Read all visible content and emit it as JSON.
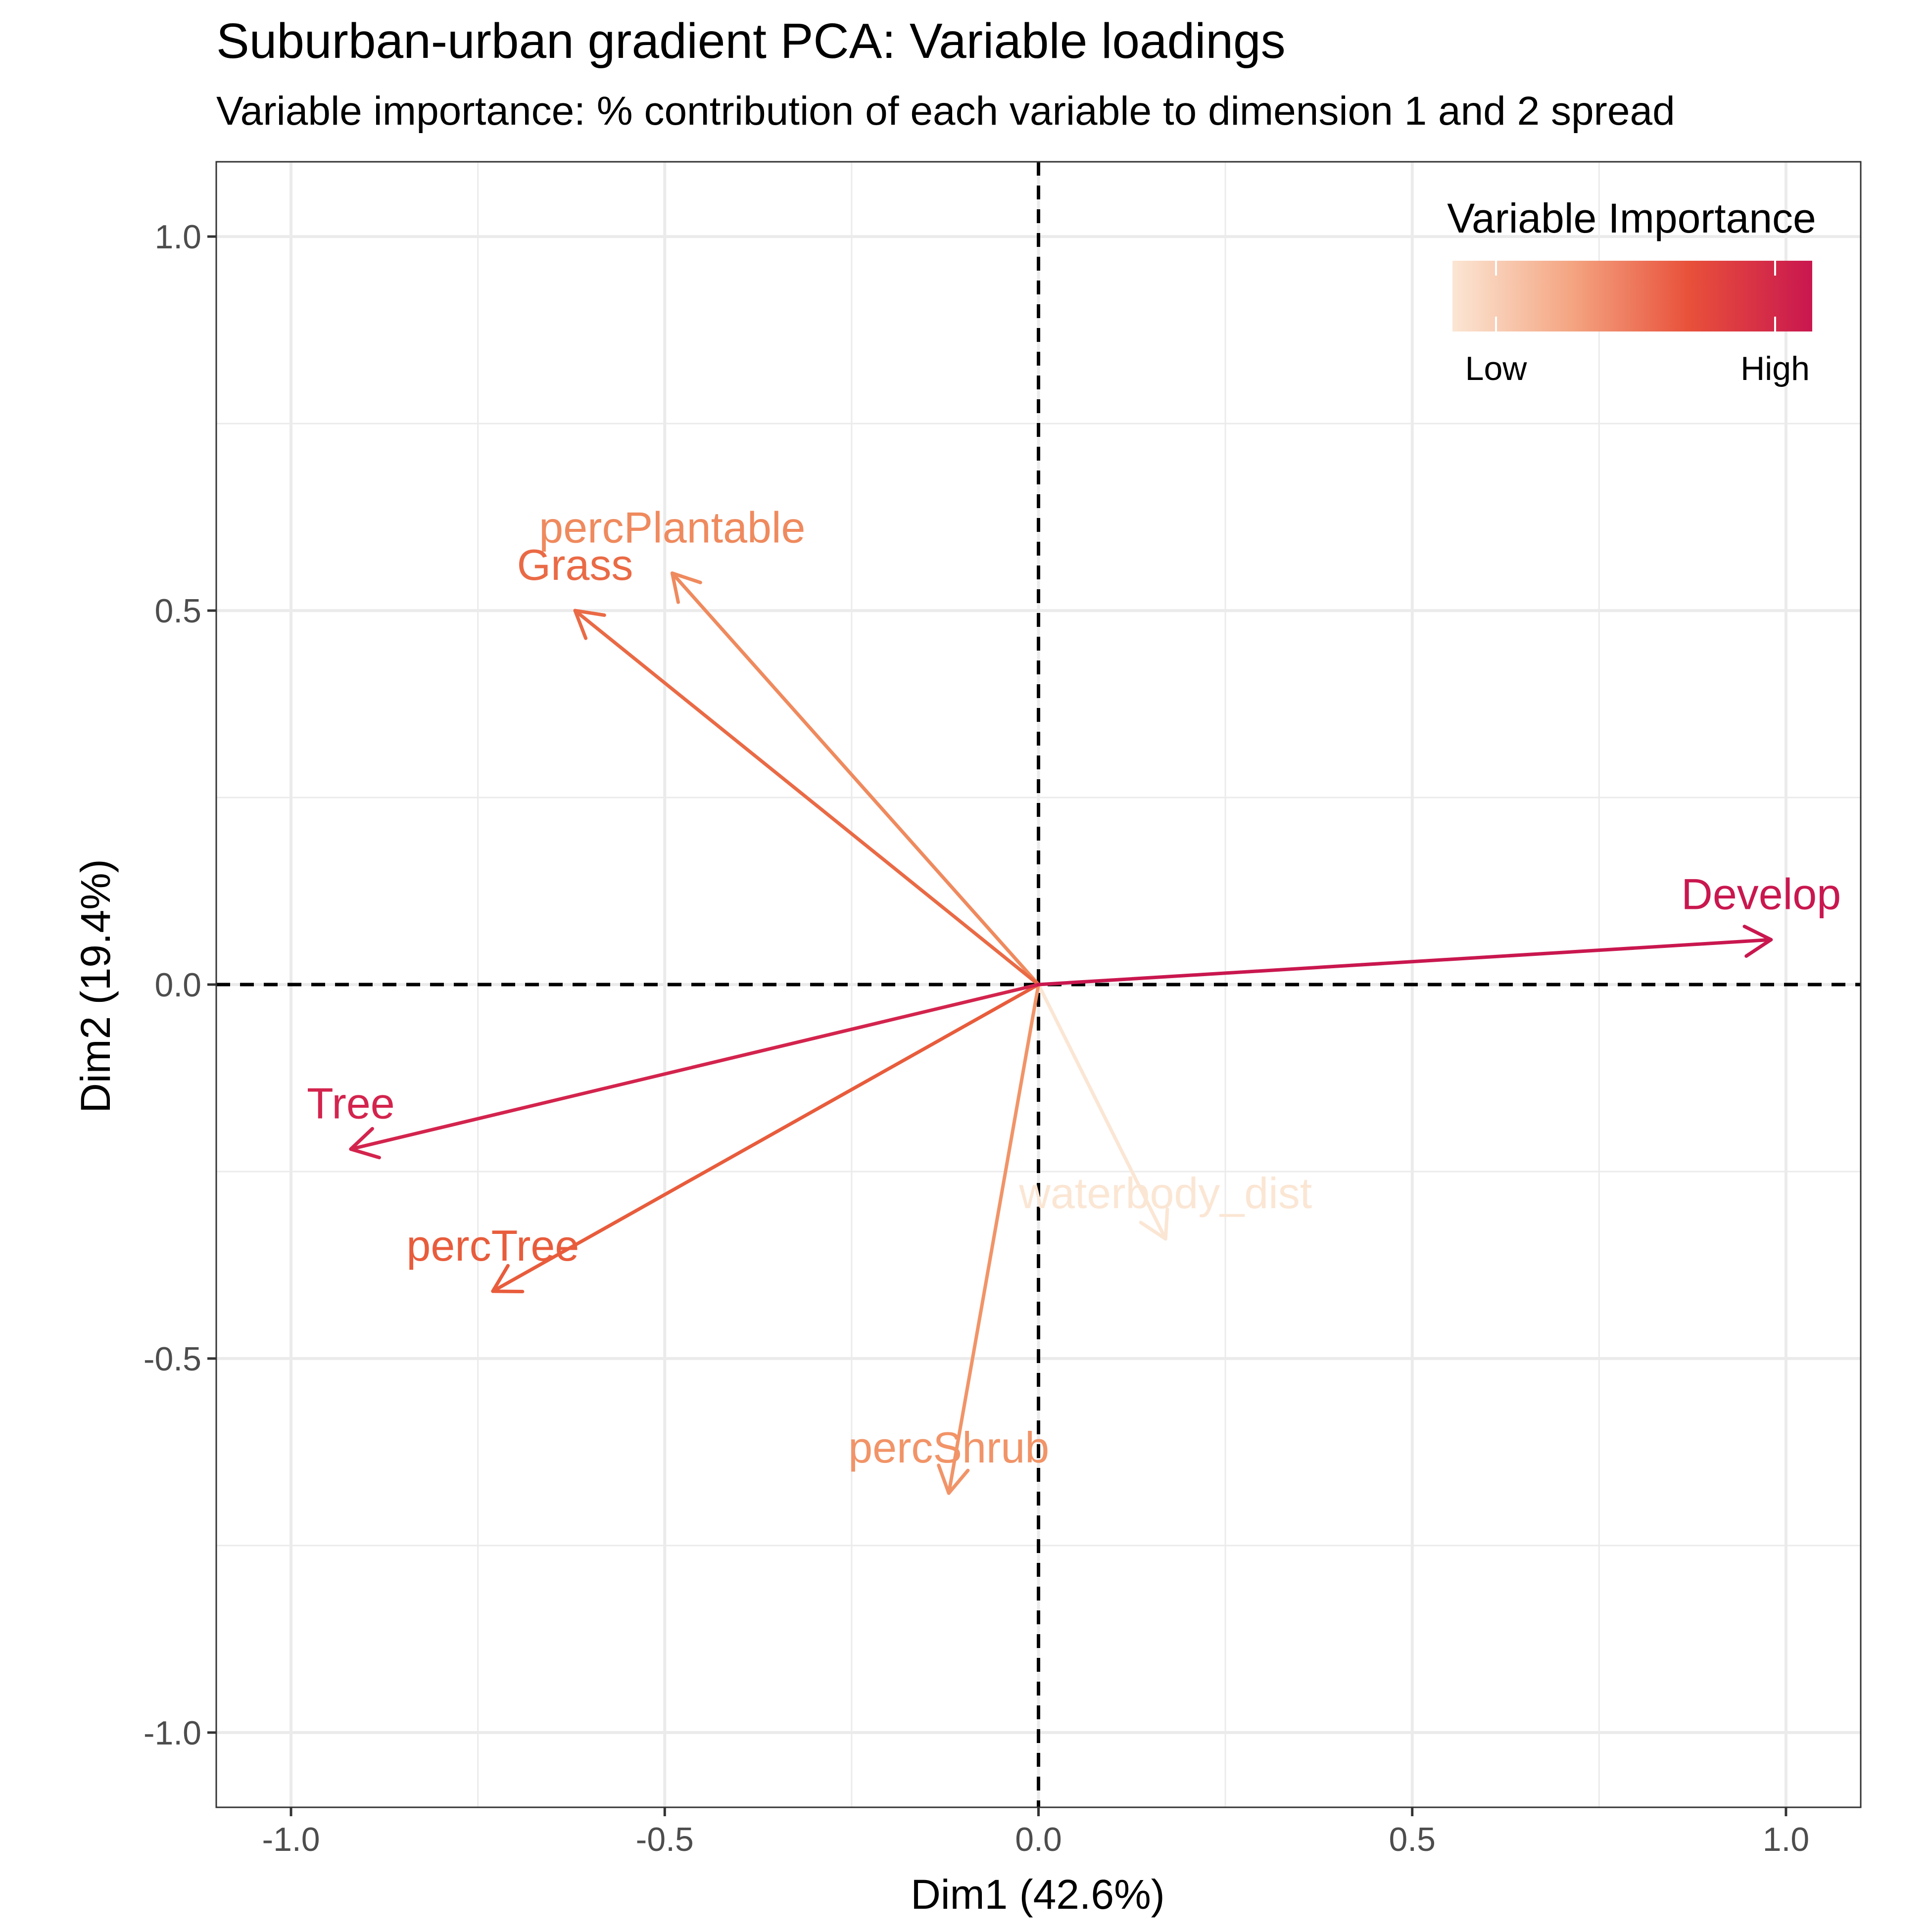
{
  "chart_data": {
    "type": "scatter",
    "title": "Suburban-urban gradient PCA: Variable loadings",
    "subtitle": "Variable importance: % contribution of each variable to dimension 1 and 2 spread",
    "xlabel": "Dim1 (42.6%)",
    "ylabel": "Dim2 (19.4%)",
    "xlim": [
      -1.1,
      1.1
    ],
    "ylim": [
      -1.1,
      1.1
    ],
    "x_ticks": [
      -1.0,
      -0.5,
      0.0,
      0.5,
      1.0
    ],
    "x_tick_labels": [
      "-1.0",
      "-0.5",
      "0.0",
      "0.5",
      "1.0"
    ],
    "y_ticks": [
      -1.0,
      -0.5,
      0.0,
      0.5,
      1.0
    ],
    "y_tick_labels": [
      "-1.0",
      "-0.5",
      "0.0",
      "0.5",
      "1.0"
    ],
    "grid": true,
    "reference_lines": {
      "x": 0,
      "y": 0,
      "style": "dashed"
    },
    "legend": {
      "title": "Variable Importance",
      "position": "top-right",
      "low_label": "Low",
      "high_label": "High",
      "gradient_colors": [
        "#fbe6d4",
        "#f4a582",
        "#e8503a",
        "#c9174f"
      ]
    },
    "series": [
      {
        "name": "Develop",
        "x": 0.98,
        "y": 0.06,
        "importance": 1.0,
        "color": "#c9174f"
      },
      {
        "name": "Tree",
        "x": -0.92,
        "y": -0.22,
        "importance": 0.93,
        "color": "#d3244d"
      },
      {
        "name": "percTree",
        "x": -0.73,
        "y": -0.41,
        "importance": 0.62,
        "color": "#e85c3c"
      },
      {
        "name": "Grass",
        "x": -0.62,
        "y": 0.5,
        "importance": 0.6,
        "color": "#ea6a45"
      },
      {
        "name": "percPlantable",
        "x": -0.49,
        "y": 0.55,
        "importance": 0.45,
        "color": "#ef8a5e"
      },
      {
        "name": "percShrub",
        "x": -0.12,
        "y": -0.68,
        "importance": 0.4,
        "color": "#f19468"
      },
      {
        "name": "waterbody_dist",
        "x": 0.17,
        "y": -0.34,
        "importance": 0.02,
        "color": "#fbe6d4"
      }
    ]
  }
}
